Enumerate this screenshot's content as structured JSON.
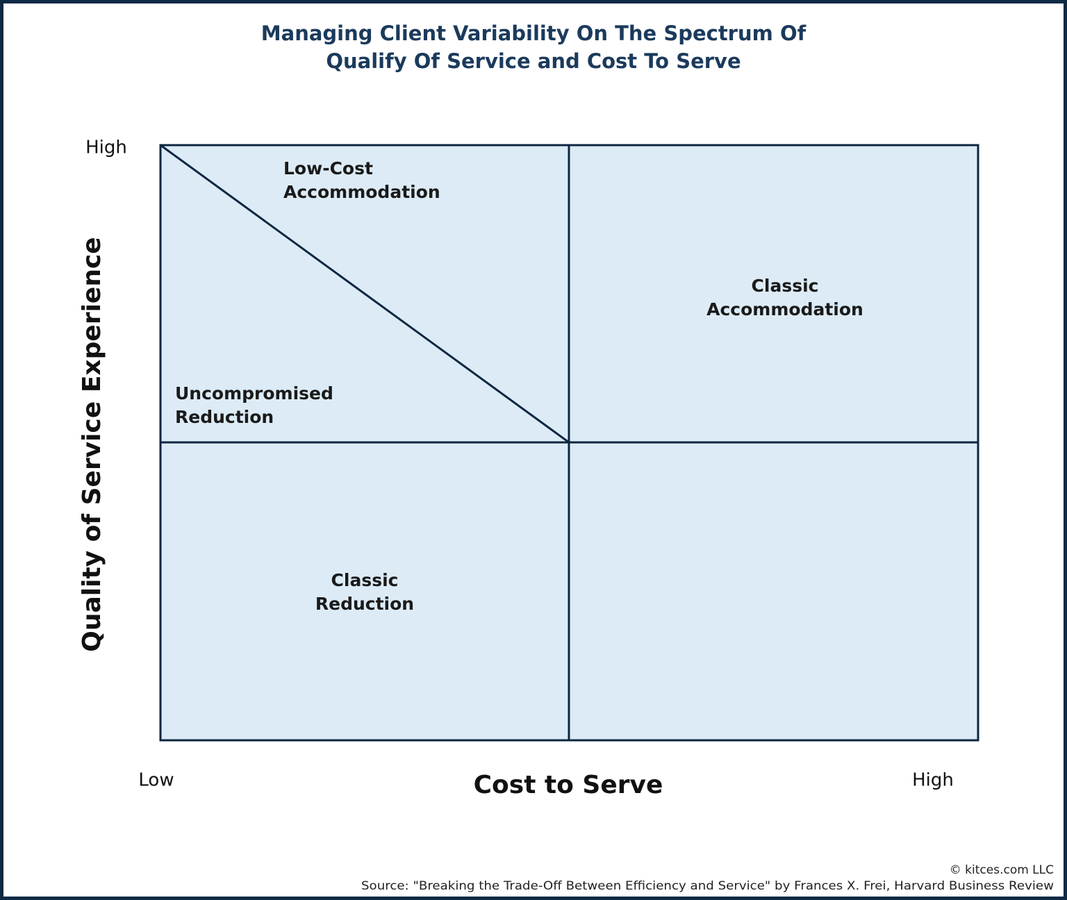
{
  "header": {
    "title": [
      "Managing Client Variability On The Spectrum Of",
      "Qualify Of Service and Cost To Serve"
    ]
  },
  "axes": {
    "y": {
      "label": "Quality of Service Experience",
      "high": "High"
    },
    "x": {
      "label": "Cost to Serve",
      "low": "Low",
      "high": "High"
    }
  },
  "regions": [
    {
      "label": [
        "Low-Cost",
        "Accommodation"
      ]
    },
    {
      "label": [
        "Classic",
        "Accommodation"
      ]
    },
    {
      "label": [
        "Uncompromised",
        "Reduction"
      ]
    },
    {
      "label": [
        "Classic",
        "Reduction"
      ]
    }
  ],
  "footer": {
    "copyright": "© kitces.com LLC",
    "source": "Source: \"Breaking the Trade-Off Between Efficiency and Service\" by Frances X. Frei, Harvard Business Review"
  }
}
